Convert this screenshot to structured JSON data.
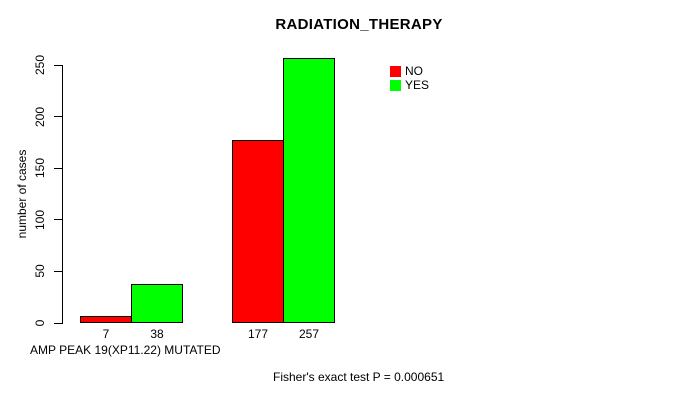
{
  "title": "RADIATION_THERAPY",
  "ylabel": "number of cases",
  "xlabel": "AMP PEAK 19(XP11.22) MUTATED",
  "footer": "Fisher's exact test P = 0.000651",
  "legend": {
    "items": [
      {
        "label": "NO",
        "color": "#ff0000"
      },
      {
        "label": "YES",
        "color": "#00ff00"
      }
    ]
  },
  "chart_data": {
    "type": "bar",
    "title": "RADIATION_THERAPY",
    "xlabel": "AMP PEAK 19(XP11.22) MUTATED",
    "ylabel": "number of cases",
    "categories": [
      "",
      ""
    ],
    "series": [
      {
        "name": "NO",
        "color": "#ff0000",
        "values": [
          7,
          177
        ]
      },
      {
        "name": "YES",
        "color": "#00ff00",
        "values": [
          38,
          257
        ]
      }
    ],
    "bar_value_labels": [
      [
        "7",
        "38"
      ],
      [
        "177",
        "257"
      ]
    ],
    "ylim": [
      0,
      250
    ],
    "yticks": [
      0,
      50,
      100,
      150,
      200,
      250
    ],
    "grid": false,
    "legend_position": "top-right",
    "annotation": "Fisher's exact test P = 0.000651"
  }
}
